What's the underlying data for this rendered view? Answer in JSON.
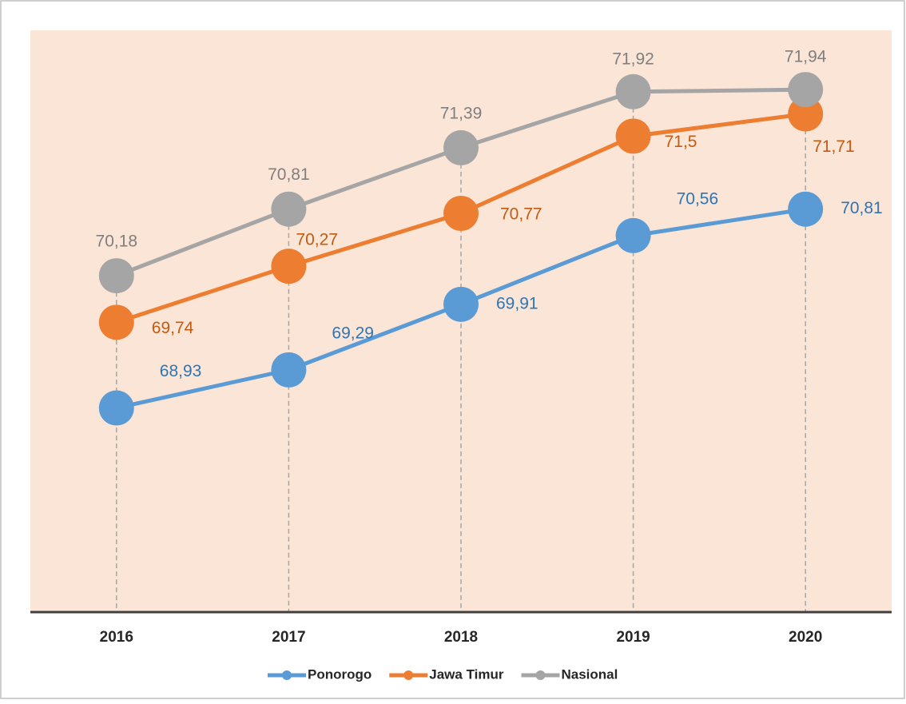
{
  "chart_data": {
    "type": "line",
    "categories": [
      "2016",
      "2017",
      "2018",
      "2019",
      "2020"
    ],
    "series": [
      {
        "name": "Ponorogo",
        "color": "#5b9bd5",
        "label_color": "#2e75b6",
        "values": [
          68.93,
          69.29,
          69.91,
          70.56,
          70.81
        ],
        "value_labels": [
          "68,93",
          "69,29",
          "69,91",
          "70,56",
          "70,81"
        ]
      },
      {
        "name": "Jawa Timur",
        "color": "#ed7d31",
        "label_color": "#c55a11",
        "values": [
          69.74,
          70.27,
          70.77,
          71.5,
          71.71
        ],
        "value_labels": [
          "69,74",
          "70,27",
          "70,77",
          "71,5",
          "71,71"
        ]
      },
      {
        "name": "Nasional",
        "color": "#a5a5a5",
        "label_color": "#7f7f7f",
        "values": [
          70.18,
          70.81,
          71.39,
          71.92,
          71.94
        ],
        "value_labels": [
          "70,18",
          "70,81",
          "71,39",
          "71,92",
          "71,94"
        ]
      }
    ],
    "ylim": [
      67,
      72.5
    ],
    "background": "#fbe5d6"
  }
}
